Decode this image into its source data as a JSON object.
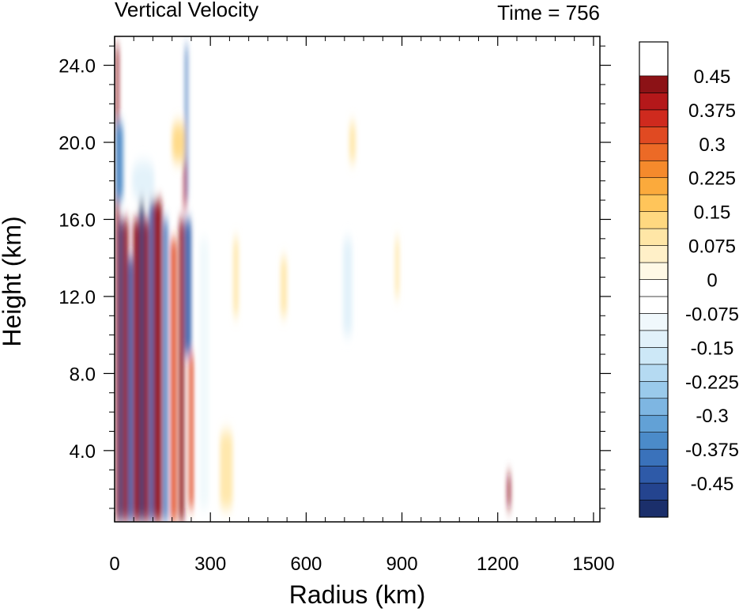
{
  "chart_data": {
    "type": "heatmap",
    "title": "Vertical Velocity",
    "subtitle": "Time = 756",
    "xlabel": "Radius (km)",
    "ylabel": "Height (km)",
    "xlim": [
      0,
      1520
    ],
    "ylim": [
      0.3,
      25.5
    ],
    "x_ticks": [
      0,
      300,
      600,
      900,
      1200,
      1500
    ],
    "x_tick_labels": [
      "0",
      "300",
      "600",
      "900",
      "1200",
      "1500"
    ],
    "y_ticks": [
      4.0,
      8.0,
      12.0,
      16.0,
      20.0,
      24.0
    ],
    "y_tick_labels": [
      "4.0",
      "8.0",
      "12.0",
      "16.0",
      "20.0",
      "24.0"
    ],
    "colorbar": {
      "min": -0.525,
      "max": 0.525,
      "step": 0.0375,
      "labels": [
        "0.45",
        "0.375",
        "0.3",
        "0.225",
        "0.15",
        "0.075",
        "0",
        "-0.075",
        "-0.15",
        "-0.225",
        "-0.3",
        "-0.375",
        "-0.45"
      ],
      "label_values": [
        0.45,
        0.375,
        0.3,
        0.225,
        0.15,
        0.075,
        0,
        -0.075,
        -0.15,
        -0.225,
        -0.3,
        -0.375,
        -0.45
      ],
      "colors": [
        "#1b2f6b",
        "#24448f",
        "#2e5aa8",
        "#3a72bb",
        "#4b8bc9",
        "#62a1d6",
        "#7eb6e2",
        "#9acaeb",
        "#b5daf2",
        "#cde8f7",
        "#e1f1fa",
        "#f0f8fc",
        "#ffffff",
        "#ffffff",
        "#fff9e6",
        "#fff0c8",
        "#ffe6a6",
        "#ffd880",
        "#ffc55a",
        "#fbaa3c",
        "#f58a2c",
        "#ec6a26",
        "#e04a22",
        "#cf2a1e",
        "#b4181a",
        "#8c1216"
      ]
    },
    "features": [
      {
        "x": 8,
        "y0": 0.3,
        "y1": 25,
        "value": 0.5,
        "width": 10
      },
      {
        "x": 20,
        "y0": 0.3,
        "y1": 16,
        "value": -0.5,
        "width": 12
      },
      {
        "x": 35,
        "y0": 0.3,
        "y1": 16,
        "value": 0.5,
        "width": 16
      },
      {
        "x": 50,
        "y0": 0.3,
        "y1": 14,
        "value": -0.45,
        "width": 14
      },
      {
        "x": 68,
        "y0": 0.3,
        "y1": 16,
        "value": 0.5,
        "width": 20
      },
      {
        "x": 85,
        "y0": 0.3,
        "y1": 17,
        "value": -0.5,
        "width": 14
      },
      {
        "x": 100,
        "y0": 0.3,
        "y1": 16,
        "value": 0.5,
        "width": 16
      },
      {
        "x": 115,
        "y0": 0.3,
        "y1": 17,
        "value": -0.45,
        "width": 12
      },
      {
        "x": 135,
        "y0": 0.3,
        "y1": 17,
        "value": 0.5,
        "width": 28
      },
      {
        "x": 160,
        "y0": 0.3,
        "y1": 16,
        "value": -0.4,
        "width": 14
      },
      {
        "x": 185,
        "y0": 0.3,
        "y1": 15,
        "value": 0.3,
        "width": 18
      },
      {
        "x": 210,
        "y0": 0.3,
        "y1": 16,
        "value": 0.5,
        "width": 16
      },
      {
        "x": 230,
        "y0": 9,
        "y1": 16,
        "value": -0.45,
        "width": 20
      },
      {
        "x": 225,
        "y0": 17,
        "y1": 25,
        "value": -0.4,
        "width": 8
      },
      {
        "x": 220,
        "y0": 16.5,
        "y1": 19,
        "value": 0.4,
        "width": 8
      },
      {
        "x": 240,
        "y0": 1,
        "y1": 9,
        "value": 0.3,
        "width": 14
      },
      {
        "x": 15,
        "y0": 17,
        "y1": 21,
        "value": -0.35,
        "width": 24
      },
      {
        "x": 90,
        "y0": 17,
        "y1": 19,
        "value": -0.12,
        "width": 70
      },
      {
        "x": 200,
        "y0": 19,
        "y1": 21,
        "value": 0.12,
        "width": 40
      },
      {
        "x": 280,
        "y0": 1,
        "y1": 15,
        "value": -0.1,
        "width": 30
      },
      {
        "x": 350,
        "y0": 1,
        "y1": 5,
        "value": 0.08,
        "width": 40
      },
      {
        "x": 380,
        "y0": 11,
        "y1": 15,
        "value": 0.1,
        "width": 16
      },
      {
        "x": 530,
        "y0": 11,
        "y1": 14,
        "value": 0.1,
        "width": 20
      },
      {
        "x": 730,
        "y0": 10,
        "y1": 15,
        "value": -0.15,
        "width": 30
      },
      {
        "x": 745,
        "y0": 19,
        "y1": 21,
        "value": 0.08,
        "width": 20
      },
      {
        "x": 885,
        "y0": 12,
        "y1": 15,
        "value": 0.08,
        "width": 12
      },
      {
        "x": 1235,
        "y0": 1,
        "y1": 2.8,
        "value": 0.5,
        "width": 10
      }
    ]
  }
}
